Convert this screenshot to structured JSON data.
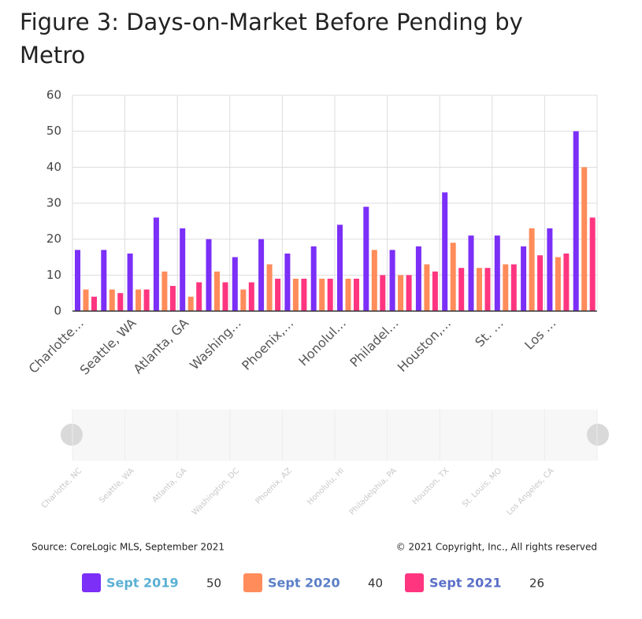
{
  "chart_data": {
    "type": "bar",
    "title": "Figure 3: Days-on-Market Before Pending by Metro",
    "categories": [
      "Charlotte, NC",
      null,
      "Seattle, WA",
      null,
      "Atlanta, GA",
      null,
      "Washington, DC",
      null,
      "Phoenix, AZ",
      null,
      "Honolulu, HI",
      null,
      "Philadelphia, PA",
      null,
      "Houston, TX",
      null,
      "St. Louis, MO",
      null,
      "Los Angeles, CA",
      null
    ],
    "tick_labels": [
      "Charlotte…",
      null,
      "Seattle, WA",
      null,
      "Atlanta, GA",
      null,
      "Washing…",
      null,
      "Phoenix,…",
      null,
      "Honolul…",
      null,
      "Philadel…",
      null,
      "Houston,…",
      null,
      "St. …",
      null,
      "Los …",
      null
    ],
    "series": [
      {
        "name": "Sept 2019",
        "color": "#7b2ff7",
        "values": [
          17,
          17,
          16,
          26,
          23,
          20,
          15,
          20,
          16,
          18,
          24,
          29,
          17,
          18,
          33,
          21,
          21,
          18,
          23,
          50
        ]
      },
      {
        "name": "Sept 2020",
        "color": "#ff8c5a",
        "values": [
          6,
          6,
          6,
          11,
          4,
          11,
          6,
          13,
          9,
          9,
          9,
          17,
          10,
          13,
          19,
          12,
          13,
          23,
          15,
          40
        ]
      },
      {
        "name": "Sept 2021",
        "color": "#ff3580",
        "values": [
          4,
          5,
          6,
          7,
          8,
          8,
          8,
          9,
          9,
          9,
          9,
          10,
          10,
          11,
          12,
          12,
          13,
          15.5,
          16,
          26
        ]
      }
    ],
    "legend_values": [
      50,
      40,
      26
    ],
    "ylim": [
      0,
      60
    ],
    "yticks": [
      0,
      10,
      20,
      30,
      40,
      50,
      60
    ],
    "grid": true,
    "source": "Source: CoreLogic MLS, September 2021",
    "copyright": "© 2021 Copyright, Inc., All rights reserved"
  }
}
